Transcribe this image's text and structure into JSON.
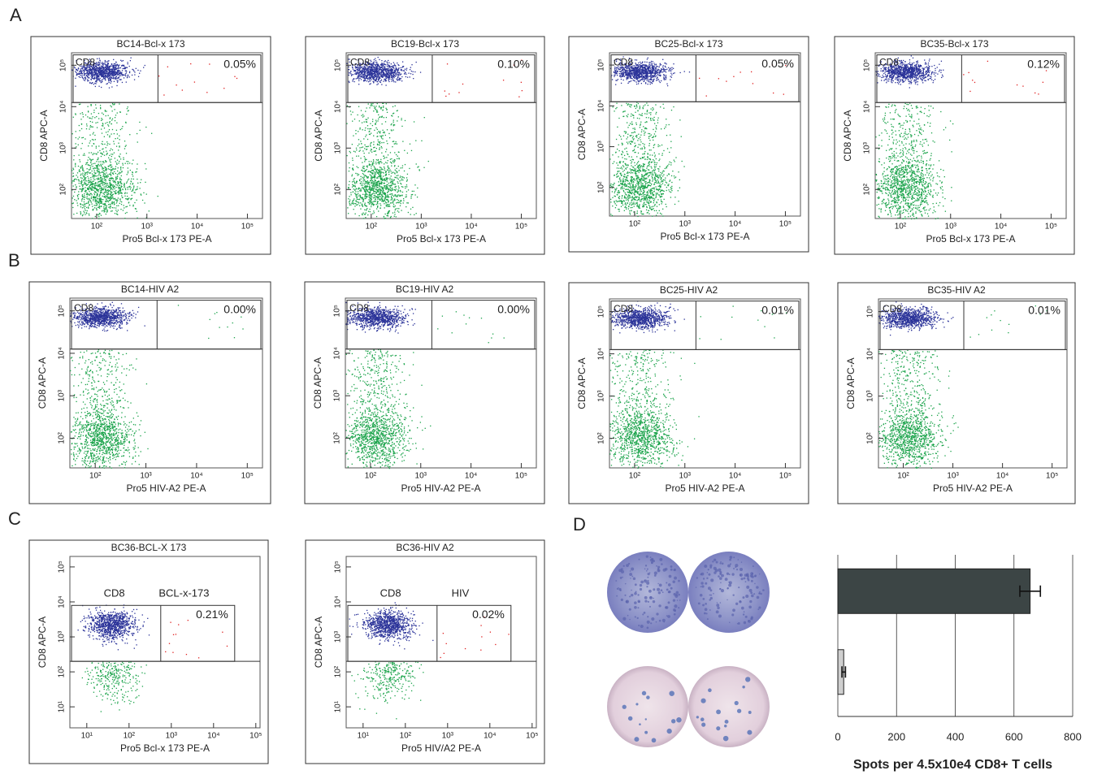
{
  "panel_labels": [
    "A",
    "B",
    "C",
    "D"
  ],
  "flow_plots": [
    {
      "title": "BC14-Bcl-x 173",
      "x_label": "Pro5 Bcl-x 173 PE-A",
      "y_label": "CD8 APC-A",
      "gate_label": "CD8",
      "percent": "0.05%",
      "xlim": [
        1.5,
        5.3
      ],
      "ylim": [
        1.3,
        5.3
      ],
      "x_ticks": [
        {
          "value": 2,
          "label": "10²"
        },
        {
          "value": 3,
          "label": "10³"
        },
        {
          "value": 4,
          "label": "10⁴"
        },
        {
          "value": 5,
          "label": "10⁵"
        }
      ],
      "y_ticks": [
        {
          "value": 2,
          "label": "10²"
        },
        {
          "value": 3,
          "label": "10³"
        },
        {
          "value": 4,
          "label": "10⁴"
        },
        {
          "value": 5,
          "label": "10⁵"
        }
      ]
    },
    {
      "title": "BC19-Bcl-x 173",
      "x_label": "Pro5 Bcl-x 173 PE-A",
      "y_label": "CD8 APC-A",
      "gate_label": "CD8",
      "percent": "0.10%",
      "xlim": [
        1.5,
        5.3
      ],
      "ylim": [
        1.3,
        5.3
      ],
      "x_ticks": [
        {
          "value": 2,
          "label": "10²"
        },
        {
          "value": 3,
          "label": "10³"
        },
        {
          "value": 4,
          "label": "10⁴"
        },
        {
          "value": 5,
          "label": "10⁵"
        }
      ],
      "y_ticks": [
        {
          "value": 2,
          "label": "10²"
        },
        {
          "value": 3,
          "label": "10³"
        },
        {
          "value": 4,
          "label": "10⁴"
        },
        {
          "value": 5,
          "label": "10⁵"
        }
      ]
    },
    {
      "title": "BC25-Bcl-x 173",
      "x_label": "Pro5 Bcl-x 173 PE-A",
      "y_label": "CD8 APC-A",
      "gate_label": "CD8",
      "percent": "0.05%",
      "xlim": [
        1.5,
        5.3
      ],
      "ylim": [
        1.3,
        5.3
      ],
      "x_ticks": [
        {
          "value": 2,
          "label": "10²"
        },
        {
          "value": 3,
          "label": "10³"
        },
        {
          "value": 4,
          "label": "10⁴"
        },
        {
          "value": 5,
          "label": "10⁵"
        }
      ],
      "y_ticks": [
        {
          "value": 2,
          "label": "10²"
        },
        {
          "value": 3,
          "label": "10³"
        },
        {
          "value": 4,
          "label": "10⁴"
        },
        {
          "value": 5,
          "label": "10⁵"
        }
      ]
    },
    {
      "title": "BC35-Bcl-x 173",
      "x_label": "Pro5 Bcl-x 173 PE-A",
      "y_label": "CD8 APC-A",
      "gate_label": "CD8",
      "percent": "0.12%",
      "xlim": [
        1.5,
        5.3
      ],
      "ylim": [
        1.3,
        5.3
      ],
      "x_ticks": [
        {
          "value": 2,
          "label": "10²"
        },
        {
          "value": 3,
          "label": "10³"
        },
        {
          "value": 4,
          "label": "10⁴"
        },
        {
          "value": 5,
          "label": "10⁵"
        }
      ],
      "y_ticks": [
        {
          "value": 2,
          "label": "10²"
        },
        {
          "value": 3,
          "label": "10³"
        },
        {
          "value": 4,
          "label": "10⁴"
        },
        {
          "value": 5,
          "label": "10⁵"
        }
      ]
    },
    {
      "title": "BC14-HIV A2",
      "x_label": "Pro5 HIV-A2 PE-A",
      "y_label": "CD8 APC-A",
      "gate_label": "CD8",
      "percent": "0.00%",
      "xlim": [
        1.5,
        5.3
      ],
      "ylim": [
        1.3,
        5.3
      ],
      "x_ticks": [
        {
          "value": 2,
          "label": "10²"
        },
        {
          "value": 3,
          "label": "10³"
        },
        {
          "value": 4,
          "label": "10⁴"
        },
        {
          "value": 5,
          "label": "10⁵"
        }
      ],
      "y_ticks": [
        {
          "value": 2,
          "label": "10²"
        },
        {
          "value": 3,
          "label": "10³"
        },
        {
          "value": 4,
          "label": "10⁴"
        },
        {
          "value": 5,
          "label": "10⁵"
        }
      ]
    },
    {
      "title": "BC19-HIV A2",
      "x_label": "Pro5 HIV-A2 PE-A",
      "y_label": "CD8 APC-A",
      "gate_label": "CD8",
      "percent": "0.00%",
      "xlim": [
        1.5,
        5.3
      ],
      "ylim": [
        1.3,
        5.3
      ],
      "x_ticks": [
        {
          "value": 2,
          "label": "10²"
        },
        {
          "value": 3,
          "label": "10³"
        },
        {
          "value": 4,
          "label": "10⁴"
        },
        {
          "value": 5,
          "label": "10⁵"
        }
      ],
      "y_ticks": [
        {
          "value": 2,
          "label": "10²"
        },
        {
          "value": 3,
          "label": "10³"
        },
        {
          "value": 4,
          "label": "10⁴"
        },
        {
          "value": 5,
          "label": "10⁵"
        }
      ]
    },
    {
      "title": "BC25-HIV A2",
      "x_label": "Pro5 HIV-A2 PE-A",
      "y_label": "CD8 APC-A",
      "gate_label": "CD8",
      "percent": "0.01%",
      "xlim": [
        1.5,
        5.3
      ],
      "ylim": [
        1.3,
        5.3
      ],
      "x_ticks": [
        {
          "value": 2,
          "label": "10²"
        },
        {
          "value": 3,
          "label": "10³"
        },
        {
          "value": 4,
          "label": "10⁴"
        },
        {
          "value": 5,
          "label": "10⁵"
        }
      ],
      "y_ticks": [
        {
          "value": 2,
          "label": "10²"
        },
        {
          "value": 3,
          "label": "10³"
        },
        {
          "value": 4,
          "label": "10⁴"
        },
        {
          "value": 5,
          "label": "10⁵"
        }
      ]
    },
    {
      "title": "BC35-HIV A2",
      "x_label": "Pro5 HIV-A2 PE-A",
      "y_label": "CD8 APC-A",
      "gate_label": "CD8",
      "percent": "0.01%",
      "xlim": [
        1.5,
        5.3
      ],
      "ylim": [
        1.3,
        5.3
      ],
      "x_ticks": [
        {
          "value": 2,
          "label": "10²"
        },
        {
          "value": 3,
          "label": "10³"
        },
        {
          "value": 4,
          "label": "10⁴"
        },
        {
          "value": 5,
          "label": "10⁵"
        }
      ],
      "y_ticks": [
        {
          "value": 2,
          "label": "10²"
        },
        {
          "value": 3,
          "label": "10³"
        },
        {
          "value": 4,
          "label": "10⁴"
        },
        {
          "value": 5,
          "label": "10⁵"
        }
      ]
    },
    {
      "title": "BC36-BCL-X 173",
      "x_label": "Pro5 Bcl-x 173 PE-A",
      "y_label": "CD8 APC-A",
      "gate_label": "CD8",
      "antigen_gate_label": "BCL-x-173",
      "percent": "0.21%",
      "xlim": [
        0.6,
        5.1
      ],
      "ylim": [
        0.4,
        5.3
      ],
      "x_ticks": [
        {
          "value": 1,
          "label": "10¹"
        },
        {
          "value": 2,
          "label": "10²"
        },
        {
          "value": 3,
          "label": "10³"
        },
        {
          "value": 4,
          "label": "10⁴"
        },
        {
          "value": 5,
          "label": "10⁵"
        }
      ],
      "y_ticks": [
        {
          "value": 1,
          "label": "10¹"
        },
        {
          "value": 2,
          "label": "10²"
        },
        {
          "value": 3,
          "label": "10³"
        },
        {
          "value": 4,
          "label": "10⁴"
        },
        {
          "value": 5,
          "label": "10⁵"
        }
      ]
    },
    {
      "title": "BC36-HIV A2",
      "x_label": "Pro5 HIV/A2 PE-A",
      "y_label": "CD8 APC-A",
      "gate_label": "CD8",
      "antigen_gate_label": "HIV",
      "percent": "0.02%",
      "xlim": [
        0.6,
        5.1
      ],
      "ylim": [
        0.4,
        5.3
      ],
      "x_ticks": [
        {
          "value": 1,
          "label": "10¹"
        },
        {
          "value": 2,
          "label": "10²"
        },
        {
          "value": 3,
          "label": "10³"
        },
        {
          "value": 4,
          "label": "10⁴"
        },
        {
          "value": 5,
          "label": "10⁵"
        }
      ],
      "y_ticks": [
        {
          "value": 1,
          "label": "10¹"
        },
        {
          "value": 2,
          "label": "10²"
        },
        {
          "value": 3,
          "label": "10³"
        },
        {
          "value": 4,
          "label": "10⁴"
        },
        {
          "value": 5,
          "label": "10⁵"
        }
      ]
    }
  ],
  "chart_data": {
    "type": "bar",
    "orientation": "horizontal",
    "categories": [
      null,
      null
    ],
    "values": [
      655,
      20
    ],
    "errors": [
      35,
      6
    ],
    "colors": [
      "#3c4545",
      "#cfcfcf"
    ],
    "xlim": [
      0,
      800
    ],
    "xticks": [
      0,
      200,
      400,
      600,
      800
    ],
    "grid": true,
    "x_label": "Spots per 4.5x10e4 CD8+ T cells"
  }
}
